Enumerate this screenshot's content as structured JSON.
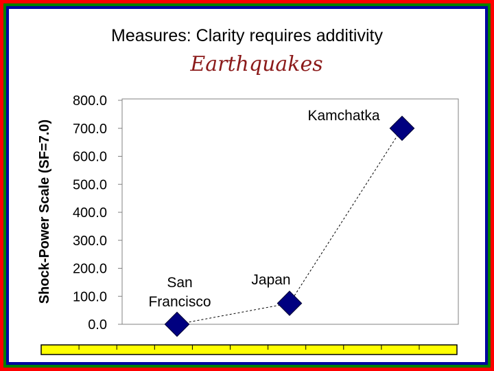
{
  "slide": {
    "title": "Measures: Clarity requires additivity",
    "subtitle": "Earthquakes"
  },
  "colors": {
    "border_red": "#ff0000",
    "border_green": "#008000",
    "border_blue": "#0000a0",
    "subtitle": "#8b1a1a",
    "marker": "#000080",
    "axis_bar": "#ffff00"
  },
  "chart_data": {
    "type": "scatter",
    "ylabel": "Shock-Power Scale (SF=7.0)",
    "ylim": [
      0,
      800
    ],
    "yticks": [
      "800.0",
      "700.0",
      "600.0",
      "500.0",
      "400.0",
      "300.0",
      "200.0",
      "100.0",
      "0.0"
    ],
    "grid": false,
    "connector": "dashed",
    "points": [
      {
        "label_lines": [
          "San",
          "Francisco"
        ],
        "y": 0
      },
      {
        "label_lines": [
          "Japan"
        ],
        "y": 75
      },
      {
        "label_lines": [
          "Kamchatka"
        ],
        "y": 700
      }
    ]
  }
}
